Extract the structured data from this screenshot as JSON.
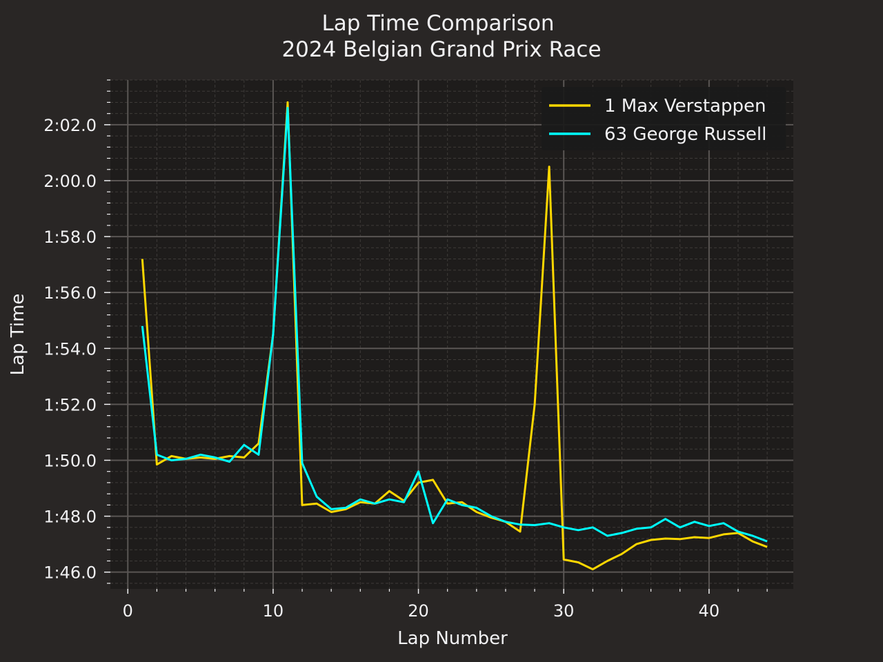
{
  "chart_data": {
    "type": "line",
    "title": "Lap Time Comparison",
    "subtitle": "2024 Belgian Grand Prix Race",
    "xlabel": "Lap Number",
    "ylabel": "Lap Time",
    "xlim": [
      -1.2,
      45.8
    ],
    "ylim": [
      105.4,
      123.6
    ],
    "xticks": [
      0,
      10,
      20,
      30,
      40
    ],
    "xtick_labels": [
      "0",
      "10",
      "20",
      "30",
      "40"
    ],
    "yticks": [
      106,
      108,
      110,
      112,
      114,
      116,
      118,
      120,
      122
    ],
    "ytick_labels": [
      "1:46.0",
      "1:48.0",
      "1:50.0",
      "1:52.0",
      "1:54.0",
      "1:56.0",
      "1:58.0",
      "2:00.0",
      "2:02.0"
    ],
    "grid": true,
    "legend_position": "top-right",
    "colors": {
      "background": "#292625",
      "plot_background": "#1e1c1b",
      "grid_major": "#5a5654",
      "grid_minor": "#3e3b39",
      "text": "#f1f1f3"
    },
    "series": [
      {
        "name": "1 Max Verstappen",
        "color": "#ffd700",
        "x": [
          1,
          2,
          3,
          4,
          5,
          6,
          7,
          8,
          9,
          10,
          11,
          12,
          13,
          14,
          15,
          16,
          17,
          18,
          19,
          20,
          21,
          22,
          23,
          24,
          25,
          26,
          27,
          28,
          29,
          30,
          31,
          32,
          33,
          34,
          35,
          36,
          37,
          38,
          39,
          40,
          41,
          42,
          43,
          44
        ],
        "values": [
          117.2,
          109.85,
          110.15,
          110.05,
          110.1,
          110.05,
          110.15,
          110.1,
          110.6,
          114.5,
          122.8,
          108.4,
          108.45,
          108.15,
          108.25,
          108.5,
          108.45,
          108.9,
          108.55,
          109.2,
          109.3,
          108.45,
          108.5,
          108.15,
          107.95,
          107.8,
          107.45,
          112.0,
          120.5,
          106.45,
          106.35,
          106.1,
          106.4,
          106.65,
          107.0,
          107.15,
          107.2,
          107.18,
          107.25,
          107.22,
          107.35,
          107.4,
          107.1,
          106.9
        ]
      },
      {
        "name": "63 George Russell",
        "color": "#00ffff",
        "x": [
          1,
          2,
          3,
          4,
          5,
          6,
          7,
          8,
          9,
          10,
          11,
          12,
          13,
          14,
          15,
          16,
          17,
          18,
          19,
          20,
          21,
          22,
          23,
          24,
          25,
          26,
          27,
          28,
          29,
          30,
          31,
          32,
          33,
          34,
          35,
          36,
          37,
          38,
          39,
          40,
          41,
          42,
          43,
          44
        ],
        "values": [
          114.8,
          110.2,
          110.0,
          110.05,
          110.2,
          110.1,
          109.95,
          110.55,
          110.2,
          114.5,
          122.6,
          109.9,
          108.7,
          108.25,
          108.3,
          108.6,
          108.45,
          108.6,
          108.5,
          109.6,
          107.75,
          108.6,
          108.4,
          108.3,
          108.0,
          107.8,
          107.7,
          107.68,
          107.75,
          107.6,
          107.5,
          107.6,
          107.3,
          107.4,
          107.55,
          107.6,
          107.9,
          107.6,
          107.8,
          107.65,
          107.75,
          107.45,
          107.3,
          107.1
        ]
      }
    ]
  }
}
